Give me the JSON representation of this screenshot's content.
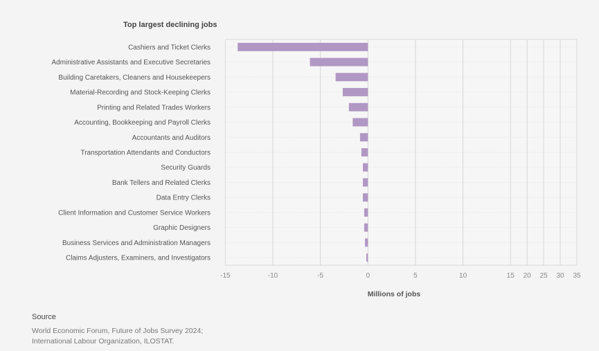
{
  "chart_data": {
    "type": "bar",
    "orientation": "horizontal",
    "title": "Top largest declining jobs",
    "xlabel": "Millions of jobs",
    "ylabel": "",
    "xlim": [
      -15,
      35
    ],
    "xticks": [
      -15,
      -10,
      -5,
      0,
      5,
      10,
      15,
      20,
      25,
      30,
      35
    ],
    "grid": true,
    "color": "#b198c4",
    "categories": [
      "Cashiers and Ticket Clerks",
      "Administrative Assistants and Executive Secretaries",
      "Building Caretakers, Cleaners and Housekeepers",
      "Material-Recording and Stock-Keeping Clerks",
      "Printing and Related Trades Workers",
      "Accounting, Bookkeeping and Payroll Clerks",
      "Accountants and Auditors",
      "Transportation Attendants and Conductors",
      "Security Guards",
      "Bank Tellers and Related Clerks",
      "Data Entry Clerks",
      "Client Information and Customer Service Workers",
      "Graphic Designers",
      "Business Services and Administration Managers",
      "Claims Adjusters, Examiners, and Investigators"
    ],
    "values": [
      -13.7,
      -6.1,
      -3.4,
      -2.65,
      -2.0,
      -1.6,
      -0.83,
      -0.68,
      -0.53,
      -0.53,
      -0.53,
      -0.39,
      -0.39,
      -0.31,
      -0.17
    ]
  },
  "source": {
    "heading": "Source",
    "lines": [
      "World Economic Forum, Future of Jobs Survey 2024;",
      "International Labour Organization, ILOSTAT."
    ]
  }
}
